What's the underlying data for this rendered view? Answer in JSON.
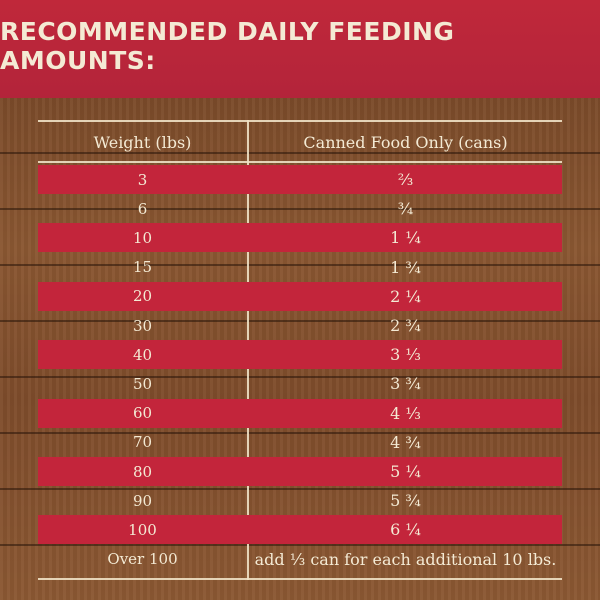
{
  "title": "RECOMMENDED DAILY FEEDING AMOUNTS:",
  "columns": {
    "weight": "Weight (lbs)",
    "cans": "Canned Food Only (cans)"
  },
  "rows": [
    {
      "weight": "3",
      "cans": "⅔"
    },
    {
      "weight": "6",
      "cans": "¾"
    },
    {
      "weight": "10",
      "cans": "1 ¼"
    },
    {
      "weight": "15",
      "cans": "1 ¾"
    },
    {
      "weight": "20",
      "cans": "2 ¼"
    },
    {
      "weight": "30",
      "cans": "2 ¾"
    },
    {
      "weight": "40",
      "cans": "3 ⅓"
    },
    {
      "weight": "50",
      "cans": "3 ¾"
    },
    {
      "weight": "60",
      "cans": "4 ⅓"
    },
    {
      "weight": "70",
      "cans": "4 ¾"
    },
    {
      "weight": "80",
      "cans": "5 ¼"
    },
    {
      "weight": "90",
      "cans": "5 ¾"
    },
    {
      "weight": "100",
      "cans": "6 ¼"
    },
    {
      "weight": "Over 100",
      "cans": "add ⅓ can for each additional 10 lbs."
    }
  ],
  "colors": {
    "banner": "#c0283a",
    "stripe": "#c3253b",
    "wood": "#7e4c2b",
    "chalk": "#f4ead4"
  }
}
